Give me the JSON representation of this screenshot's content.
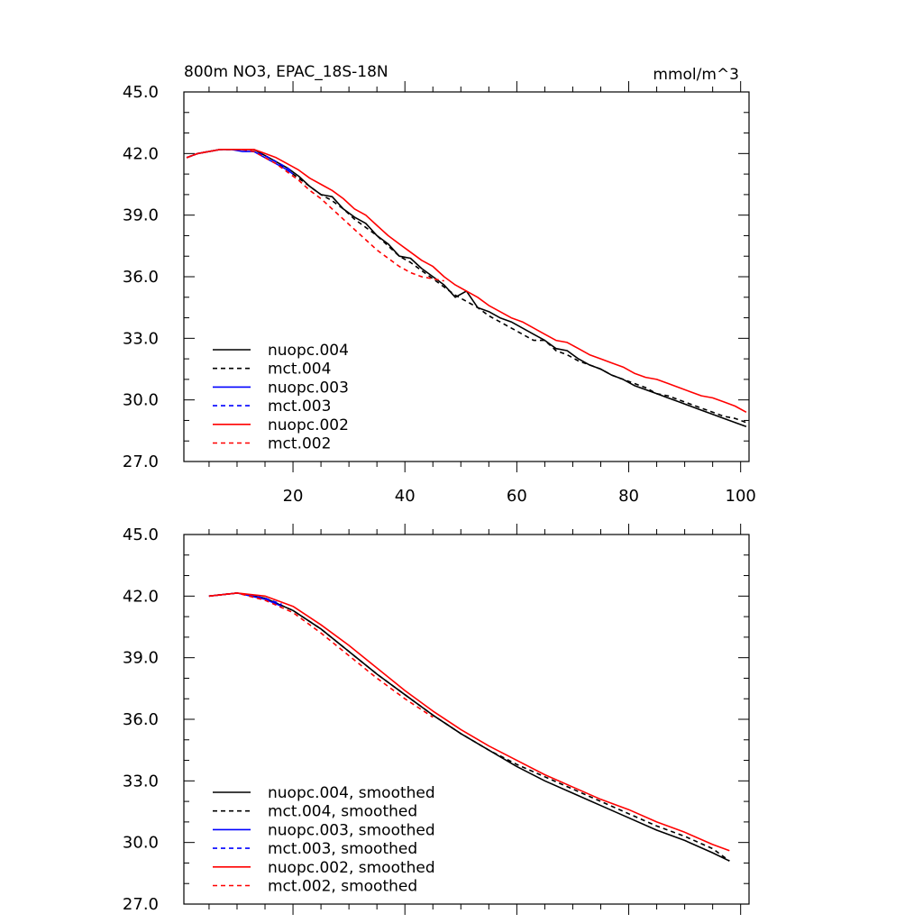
{
  "chart_data": [
    {
      "type": "line",
      "title": "800m NO3, EPAC_18S-18N",
      "units": "mmol/m^3",
      "xlim": [
        0.5,
        101.5
      ],
      "ylim": [
        27.0,
        45.0
      ],
      "x_ticks": [
        20,
        40,
        60,
        80,
        100
      ],
      "x_tick_labels": [
        "20",
        "40",
        "60",
        "80",
        "100"
      ],
      "y_ticks": [
        27.0,
        30.0,
        33.0,
        36.0,
        39.0,
        42.0,
        45.0
      ],
      "y_tick_labels": [
        "27.0",
        "30.0",
        "33.0",
        "36.0",
        "39.0",
        "42.0",
        "45.0"
      ],
      "legend_position": "bottom-left",
      "series": [
        {
          "name": "nuopc.004",
          "color": "#000000",
          "dash": "solid",
          "x": [
            1,
            3,
            5,
            7,
            9,
            11,
            13,
            15,
            17,
            19,
            21,
            23,
            25,
            27,
            29,
            31,
            33,
            35,
            37,
            39,
            41,
            43,
            45,
            47,
            49,
            51,
            53,
            55,
            57,
            59,
            61,
            63,
            65,
            67,
            69,
            71,
            73,
            75,
            77,
            79,
            81,
            83,
            85,
            87,
            89,
            91,
            93,
            95,
            97,
            99,
            101
          ],
          "values": [
            41.8,
            42.0,
            42.1,
            42.2,
            42.2,
            42.2,
            42.2,
            41.9,
            41.6,
            41.3,
            40.9,
            40.4,
            40.0,
            39.9,
            39.3,
            38.9,
            38.6,
            38.0,
            37.6,
            37.0,
            36.9,
            36.4,
            36.0,
            35.6,
            35.0,
            35.3,
            34.5,
            34.3,
            34.0,
            33.8,
            33.5,
            33.2,
            32.9,
            32.5,
            32.4,
            32.0,
            31.7,
            31.5,
            31.2,
            31.0,
            30.7,
            30.5,
            30.3,
            30.1,
            29.9,
            29.7,
            29.5,
            29.3,
            29.1,
            28.9,
            28.7
          ]
        },
        {
          "name": "mct.004",
          "color": "#000000",
          "dash": "dashed",
          "x": [
            1,
            3,
            5,
            7,
            9,
            11,
            13,
            15,
            17,
            19,
            21,
            23,
            25,
            27,
            29,
            31,
            33,
            35,
            37,
            39,
            41,
            43,
            45,
            47,
            49,
            51,
            53,
            55,
            57,
            59,
            61,
            63,
            65,
            67,
            69,
            71,
            73,
            75,
            77,
            79,
            81,
            83,
            85,
            87,
            89,
            91,
            93,
            95,
            97,
            99,
            101
          ],
          "values": [
            41.8,
            42.0,
            42.1,
            42.2,
            42.2,
            42.2,
            42.1,
            41.9,
            41.6,
            41.2,
            40.8,
            40.4,
            40.0,
            39.7,
            39.3,
            38.8,
            38.4,
            38.0,
            37.5,
            37.0,
            36.7,
            36.3,
            35.9,
            35.5,
            35.1,
            34.8,
            34.5,
            34.1,
            33.8,
            33.5,
            33.2,
            32.9,
            32.9,
            32.4,
            32.2,
            31.9,
            31.7,
            31.5,
            31.2,
            31.0,
            30.8,
            30.6,
            30.3,
            30.2,
            30.0,
            29.8,
            29.6,
            29.4,
            29.2,
            29.1,
            28.9
          ]
        },
        {
          "name": "nuopc.003",
          "color": "#0000ff",
          "dash": "solid",
          "x": [
            1,
            3,
            5,
            7,
            9,
            11,
            13,
            15,
            17,
            19,
            20
          ],
          "values": [
            41.8,
            42.0,
            42.1,
            42.2,
            42.2,
            42.1,
            42.1,
            41.8,
            41.5,
            41.2,
            41.0
          ]
        },
        {
          "name": "mct.003",
          "color": "#0000ff",
          "dash": "dashed",
          "x": [
            1,
            3,
            5,
            7,
            9,
            11,
            13,
            15,
            17,
            19,
            20
          ],
          "values": [
            41.8,
            42.0,
            42.1,
            42.2,
            42.2,
            42.2,
            42.1,
            41.9,
            41.6,
            41.3,
            41.1
          ]
        },
        {
          "name": "nuopc.002",
          "color": "#ff0000",
          "dash": "solid",
          "x": [
            1,
            3,
            5,
            7,
            9,
            11,
            13,
            15,
            17,
            19,
            21,
            23,
            25,
            27,
            29,
            31,
            33,
            35,
            37,
            39,
            41,
            43,
            45,
            47,
            49,
            51,
            53,
            55,
            57,
            59,
            61,
            63,
            65,
            67,
            69,
            71,
            73,
            75,
            77,
            79,
            81,
            83,
            85,
            87,
            89,
            91,
            93,
            95,
            97,
            99,
            101
          ],
          "values": [
            41.8,
            42.0,
            42.1,
            42.2,
            42.2,
            42.2,
            42.2,
            42.0,
            41.8,
            41.5,
            41.2,
            40.8,
            40.5,
            40.2,
            39.8,
            39.3,
            39.0,
            38.5,
            38.0,
            37.6,
            37.2,
            36.8,
            36.5,
            36.0,
            35.6,
            35.3,
            35.0,
            34.6,
            34.3,
            34.0,
            33.8,
            33.5,
            33.2,
            32.9,
            32.8,
            32.5,
            32.2,
            32.0,
            31.8,
            31.6,
            31.3,
            31.1,
            31.0,
            30.8,
            30.6,
            30.4,
            30.2,
            30.1,
            29.9,
            29.7,
            29.4
          ]
        },
        {
          "name": "mct.002",
          "color": "#ff0000",
          "dash": "dashed",
          "x": [
            1,
            3,
            5,
            7,
            9,
            11,
            13,
            15,
            17,
            19,
            21,
            23,
            25,
            27,
            29,
            31,
            33,
            35,
            37,
            39,
            41,
            43,
            45,
            47
          ],
          "values": [
            41.8,
            42.0,
            42.1,
            42.2,
            42.2,
            42.2,
            42.1,
            41.8,
            41.5,
            41.1,
            40.7,
            40.2,
            39.8,
            39.3,
            38.8,
            38.3,
            37.8,
            37.3,
            36.9,
            36.5,
            36.2,
            36.0,
            35.9,
            35.8
          ]
        }
      ]
    },
    {
      "type": "line",
      "xlim": [
        0.5,
        101.5
      ],
      "ylim": [
        27.0,
        45.0
      ],
      "y_ticks": [
        27.0,
        30.0,
        33.0,
        36.0,
        39.0,
        42.0,
        45.0
      ],
      "y_tick_labels": [
        "27.0",
        "30.0",
        "33.0",
        "36.0",
        "39.0",
        "42.0",
        "45.0"
      ],
      "legend_position": "bottom-left",
      "series": [
        {
          "name": "nuopc.004, smoothed",
          "color": "#000000",
          "dash": "solid",
          "x": [
            5,
            10,
            15,
            20,
            25,
            30,
            35,
            40,
            45,
            50,
            55,
            60,
            65,
            70,
            75,
            80,
            85,
            90,
            95,
            98
          ],
          "values": [
            42.0,
            42.15,
            41.9,
            41.3,
            40.4,
            39.3,
            38.2,
            37.2,
            36.2,
            35.3,
            34.5,
            33.7,
            33.0,
            32.4,
            31.8,
            31.2,
            30.6,
            30.1,
            29.5,
            29.1
          ]
        },
        {
          "name": "mct.004, smoothed",
          "color": "#000000",
          "dash": "dashed",
          "x": [
            5,
            10,
            15,
            20,
            25,
            30,
            35,
            40,
            45,
            50,
            55,
            60,
            65,
            70,
            75,
            80,
            85,
            90,
            95,
            98
          ],
          "values": [
            42.0,
            42.15,
            41.9,
            41.3,
            40.4,
            39.3,
            38.2,
            37.2,
            36.2,
            35.3,
            34.5,
            33.8,
            33.2,
            32.6,
            32.0,
            31.4,
            30.8,
            30.3,
            29.7,
            29.1
          ]
        },
        {
          "name": "nuopc.003, smoothed",
          "color": "#0000ff",
          "dash": "solid",
          "x": [
            5,
            10,
            15,
            18
          ],
          "values": [
            42.0,
            42.15,
            41.85,
            41.5
          ]
        },
        {
          "name": "mct.003, smoothed",
          "color": "#0000ff",
          "dash": "dashed",
          "x": [
            5,
            10,
            15,
            18
          ],
          "values": [
            42.0,
            42.15,
            41.9,
            41.6
          ]
        },
        {
          "name": "nuopc.002, smoothed",
          "color": "#ff0000",
          "dash": "solid",
          "x": [
            5,
            10,
            15,
            20,
            25,
            30,
            35,
            40,
            45,
            50,
            55,
            60,
            65,
            70,
            75,
            80,
            85,
            90,
            95,
            98
          ],
          "values": [
            42.0,
            42.15,
            42.0,
            41.5,
            40.6,
            39.6,
            38.5,
            37.4,
            36.4,
            35.5,
            34.7,
            34.0,
            33.3,
            32.7,
            32.1,
            31.6,
            31.0,
            30.5,
            29.9,
            29.6
          ]
        },
        {
          "name": "mct.002, smoothed",
          "color": "#ff0000",
          "dash": "dashed",
          "x": [
            5,
            10,
            15,
            20,
            25,
            30,
            35,
            40,
            45
          ],
          "values": [
            42.0,
            42.15,
            41.8,
            41.2,
            40.2,
            39.1,
            38.0,
            37.0,
            36.1
          ]
        }
      ]
    }
  ]
}
